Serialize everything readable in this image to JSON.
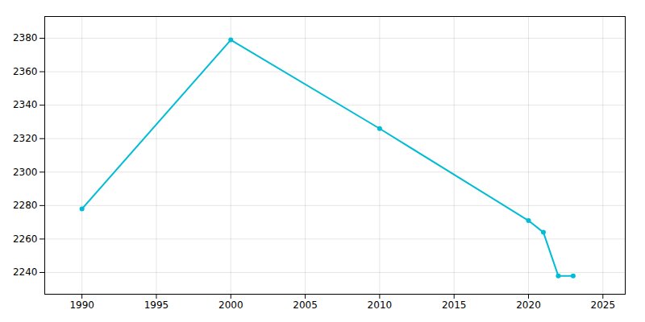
{
  "chart_data": {
    "type": "line",
    "x": [
      1990,
      2000,
      2010,
      2020,
      2021,
      2022,
      2023
    ],
    "values": [
      2278,
      2379,
      2326,
      2271,
      2264,
      2238,
      2238
    ],
    "color": "#00BCD4",
    "marker": "circle",
    "xlim": [
      1987.5,
      2026.5
    ],
    "ylim": [
      2227,
      2393
    ],
    "xticks": [
      1990,
      1995,
      2000,
      2005,
      2010,
      2015,
      2020,
      2025
    ],
    "yticks": [
      2240,
      2260,
      2280,
      2300,
      2320,
      2340,
      2360,
      2380
    ],
    "grid": true
  }
}
